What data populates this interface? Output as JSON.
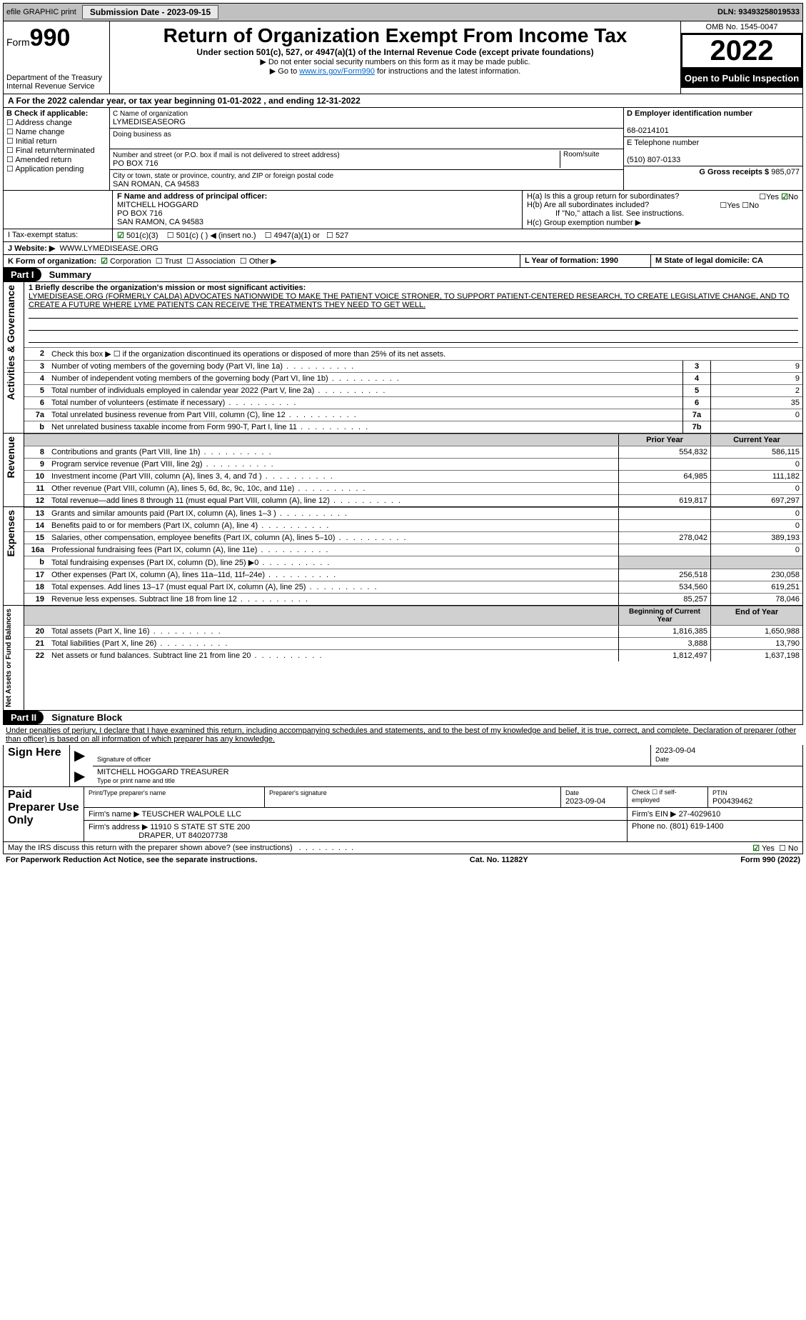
{
  "topbar": {
    "efile": "efile GRAPHIC print",
    "submission_btn": "Submission Date - 2023-09-15",
    "dln": "DLN: 93493258019533"
  },
  "header": {
    "form_label": "Form",
    "form_num": "990",
    "dept": "Department of the Treasury",
    "irs": "Internal Revenue Service",
    "title": "Return of Organization Exempt From Income Tax",
    "sub1": "Under section 501(c), 527, or 4947(a)(1) of the Internal Revenue Code (except private foundations)",
    "sub2": "▶ Do not enter social security numbers on this form as it may be made public.",
    "sub3_pre": "▶ Go to ",
    "sub3_link": "www.irs.gov/Form990",
    "sub3_post": " for instructions and the latest information.",
    "omb": "OMB No. 1545-0047",
    "year": "2022",
    "inspect": "Open to Public Inspection"
  },
  "line_a": "A For the 2022 calendar year, or tax year beginning 01-01-2022    , and ending 12-31-2022",
  "check_b": {
    "title": "B Check if applicable:",
    "opts": [
      "Address change",
      "Name change",
      "Initial return",
      "Final return/terminated",
      "Amended return",
      "Application pending"
    ]
  },
  "box_c": {
    "label_c": "C Name of organization",
    "org": "LYMEDISEASEORG",
    "dba_label": "Doing business as",
    "addr_label": "Number and street (or P.O. box if mail is not delivered to street address)",
    "room": "Room/suite",
    "addr": "PO BOX 716",
    "city_label": "City or town, state or province, country, and ZIP or foreign postal code",
    "city": "SAN ROMAN, CA  94583"
  },
  "box_d": {
    "label": "D Employer identification number",
    "val": "68-0214101"
  },
  "box_e": {
    "label": "E Telephone number",
    "val": "(510) 807-0133"
  },
  "box_g": {
    "label": "G Gross receipts $",
    "val": "985,077"
  },
  "box_f": {
    "label": "F  Name and address of principal officer:",
    "name": "MITCHELL HOGGARD",
    "addr1": "PO BOX 716",
    "addr2": "SAN RAMON, CA  94583"
  },
  "box_h": {
    "ha": "H(a)  Is this a group return for subordinates?",
    "hb": "H(b)  Are all subordinates included?",
    "hb_note": "If \"No,\" attach a list. See instructions.",
    "hc": "H(c)  Group exemption number ▶"
  },
  "tax_exempt": {
    "label": "I   Tax-exempt status:",
    "o1": "501(c)(3)",
    "o2": "501(c) (  ) ◀ (insert no.)",
    "o3": "4947(a)(1) or",
    "o4": "527"
  },
  "website": {
    "label": "J   Website: ▶",
    "val": "WWW.LYMEDISEASE.ORG"
  },
  "line_k": {
    "label": "K Form of organization:",
    "opts": [
      "Corporation",
      "Trust",
      "Association",
      "Other ▶"
    ],
    "l": "L Year of formation: 1990",
    "m": "M State of legal domicile: CA"
  },
  "part1": {
    "hdr": "Part I",
    "title": "Summary",
    "q1": "1  Briefly describe the organization's mission or most significant activities:",
    "mission": "LYMEDISEASE.ORG (FORMERLY CALDA) ADVOCATES NATIONWIDE TO MAKE THE PATIENT VOICE STRONER, TO SUPPORT PATIENT-CENTERED RESEARCH, TO CREATE LEGISLATIVE CHANGE, AND TO CREATE A FUTURE WHERE LYME PATIENTS CAN RECEIVE THE TREATMENTS THEY NEED TO GET WELL.",
    "q2": "Check this box ▶ ☐  if the organization discontinued its operations or disposed of more than 25% of its net assets.",
    "gov_label": "Activities & Governance",
    "rev_label": "Revenue",
    "exp_label": "Expenses",
    "net_label": "Net Assets or Fund Balances",
    "rows_gov": [
      {
        "n": "3",
        "t": "Number of voting members of the governing body (Part VI, line 1a)",
        "l": "3",
        "v": "9"
      },
      {
        "n": "4",
        "t": "Number of independent voting members of the governing body (Part VI, line 1b)",
        "l": "4",
        "v": "9"
      },
      {
        "n": "5",
        "t": "Total number of individuals employed in calendar year 2022 (Part V, line 2a)",
        "l": "5",
        "v": "2"
      },
      {
        "n": "6",
        "t": "Total number of volunteers (estimate if necessary)",
        "l": "6",
        "v": "35"
      },
      {
        "n": "7a",
        "t": "Total unrelated business revenue from Part VIII, column (C), line 12",
        "l": "7a",
        "v": "0"
      },
      {
        "n": "b",
        "t": "Net unrelated business taxable income from Form 990-T, Part I, line 11",
        "l": "7b",
        "v": ""
      }
    ],
    "col_prior": "Prior Year",
    "col_curr": "Current Year",
    "rows_rev": [
      {
        "n": "8",
        "t": "Contributions and grants (Part VIII, line 1h)",
        "p": "554,832",
        "c": "586,115"
      },
      {
        "n": "9",
        "t": "Program service revenue (Part VIII, line 2g)",
        "p": "",
        "c": "0"
      },
      {
        "n": "10",
        "t": "Investment income (Part VIII, column (A), lines 3, 4, and 7d )",
        "p": "64,985",
        "c": "111,182"
      },
      {
        "n": "11",
        "t": "Other revenue (Part VIII, column (A), lines 5, 6d, 8c, 9c, 10c, and 11e)",
        "p": "",
        "c": "0"
      },
      {
        "n": "12",
        "t": "Total revenue—add lines 8 through 11 (must equal Part VIII, column (A), line 12)",
        "p": "619,817",
        "c": "697,297"
      }
    ],
    "rows_exp": [
      {
        "n": "13",
        "t": "Grants and similar amounts paid (Part IX, column (A), lines 1–3 )",
        "p": "",
        "c": "0"
      },
      {
        "n": "14",
        "t": "Benefits paid to or for members (Part IX, column (A), line 4)",
        "p": "",
        "c": "0"
      },
      {
        "n": "15",
        "t": "Salaries, other compensation, employee benefits (Part IX, column (A), lines 5–10)",
        "p": "278,042",
        "c": "389,193"
      },
      {
        "n": "16a",
        "t": "Professional fundraising fees (Part IX, column (A), line 11e)",
        "p": "",
        "c": "0"
      },
      {
        "n": "b",
        "t": "Total fundraising expenses (Part IX, column (D), line 25) ▶0",
        "p": "",
        "c": "",
        "shade": true
      },
      {
        "n": "17",
        "t": "Other expenses (Part IX, column (A), lines 11a–11d, 11f–24e)",
        "p": "256,518",
        "c": "230,058"
      },
      {
        "n": "18",
        "t": "Total expenses. Add lines 13–17 (must equal Part IX, column (A), line 25)",
        "p": "534,560",
        "c": "619,251"
      },
      {
        "n": "19",
        "t": "Revenue less expenses. Subtract line 18 from line 12",
        "p": "85,257",
        "c": "78,046"
      }
    ],
    "col_beg": "Beginning of Current Year",
    "col_end": "End of Year",
    "rows_net": [
      {
        "n": "20",
        "t": "Total assets (Part X, line 16)",
        "p": "1,816,385",
        "c": "1,650,988"
      },
      {
        "n": "21",
        "t": "Total liabilities (Part X, line 26)",
        "p": "3,888",
        "c": "13,790"
      },
      {
        "n": "22",
        "t": "Net assets or fund balances. Subtract line 21 from line 20",
        "p": "1,812,497",
        "c": "1,637,198"
      }
    ]
  },
  "part2": {
    "hdr": "Part II",
    "title": "Signature Block",
    "decl": "Under penalties of perjury, I declare that I have examined this return, including accompanying schedules and statements, and to the best of my knowledge and belief, it is true, correct, and complete. Declaration of preparer (other than officer) is based on all information of which preparer has any knowledge.",
    "sign_here": "Sign Here",
    "sig_officer": "Signature of officer",
    "sig_date": "2023-09-04",
    "sig_date_lbl": "Date",
    "officer_name": "MITCHELL HOGGARD  TREASURER",
    "officer_lbl": "Type or print name and title",
    "paid_prep": "Paid Preparer Use Only",
    "prep_name_lbl": "Print/Type preparer's name",
    "prep_sig_lbl": "Preparer's signature",
    "prep_date_lbl": "Date",
    "prep_date": "2023-09-04",
    "check_self": "Check ☐ if self-employed",
    "ptin_lbl": "PTIN",
    "ptin": "P00439462",
    "firm_name_lbl": "Firm's name    ▶",
    "firm_name": "TEUSCHER WALPOLE LLC",
    "firm_ein_lbl": "Firm's EIN ▶",
    "firm_ein": "27-4029610",
    "firm_addr_lbl": "Firm's address ▶",
    "firm_addr1": "11910 S STATE ST STE 200",
    "firm_addr2": "DRAPER, UT  840207738",
    "phone_lbl": "Phone no.",
    "phone": "(801) 619-1400",
    "may_irs": "May the IRS discuss this return with the preparer shown above? (see instructions)"
  },
  "footer": {
    "left": "For Paperwork Reduction Act Notice, see the separate instructions.",
    "mid": "Cat. No. 11282Y",
    "right": "Form 990 (2022)"
  }
}
